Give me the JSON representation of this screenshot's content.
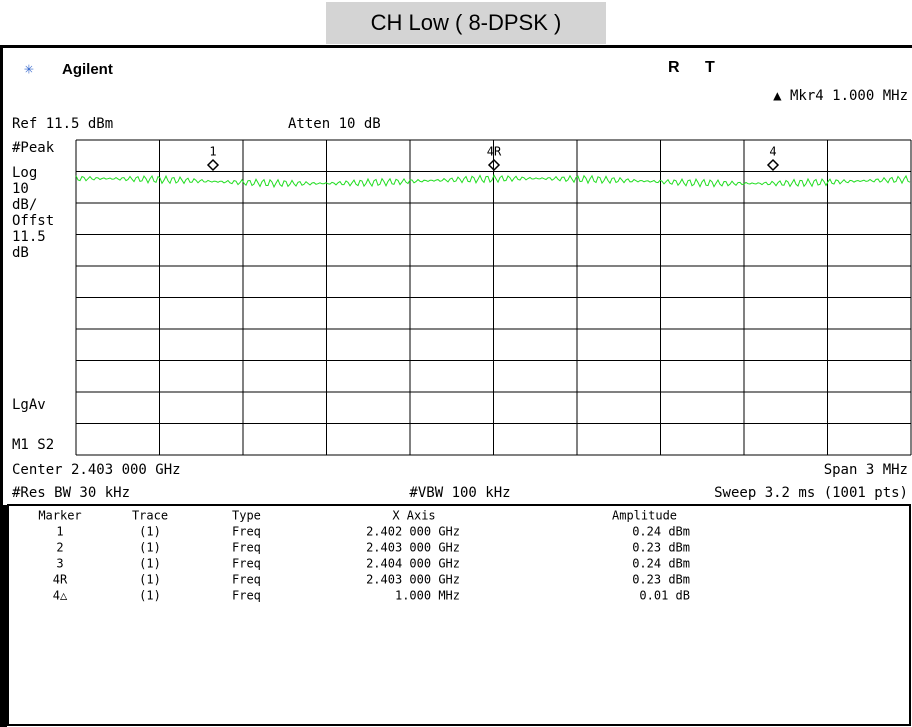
{
  "header": {
    "title": "CH Low ( 8-DPSK )",
    "brand": "Agilent",
    "status": [
      "R",
      "T"
    ],
    "marker_readout": "▲ Mkr4  1.000 MHz",
    "marker_delta": "0.01 dB"
  },
  "settings": {
    "ref": "Ref 11.5 dBm",
    "atten": "Atten 10 dB",
    "left_labels": [
      "#Peak",
      "Log",
      "10",
      "dB/",
      "Offst",
      "11.5",
      "dB",
      "LgAv",
      "M1  S2"
    ],
    "center": "Center 2.403 000 GHz",
    "span": "Span 3 MHz",
    "rbw": "#Res BW 30 kHz",
    "vbw": "#VBW 100 kHz",
    "sweep": "Sweep 3.2 ms (1001 pts)"
  },
  "plot_markers": [
    "1",
    "4R",
    "4"
  ],
  "table": {
    "columns": [
      "Marker",
      "Trace",
      "Type",
      "X Axis",
      "Amplitude"
    ],
    "rows": [
      [
        "1",
        "(1)",
        "Freq",
        "2.402 000 GHz",
        "0.24 dBm"
      ],
      [
        "2",
        "(1)",
        "Freq",
        "2.403 000 GHz",
        "0.23 dBm"
      ],
      [
        "3",
        "(1)",
        "Freq",
        "2.404 000 GHz",
        "0.24 dBm"
      ],
      [
        "4R",
        "(1)",
        "Freq",
        "2.403 000 GHz",
        "0.23 dBm"
      ],
      [
        "4△",
        "(1)",
        "Freq",
        "1.000 MHz",
        "0.01 dB"
      ]
    ]
  }
}
